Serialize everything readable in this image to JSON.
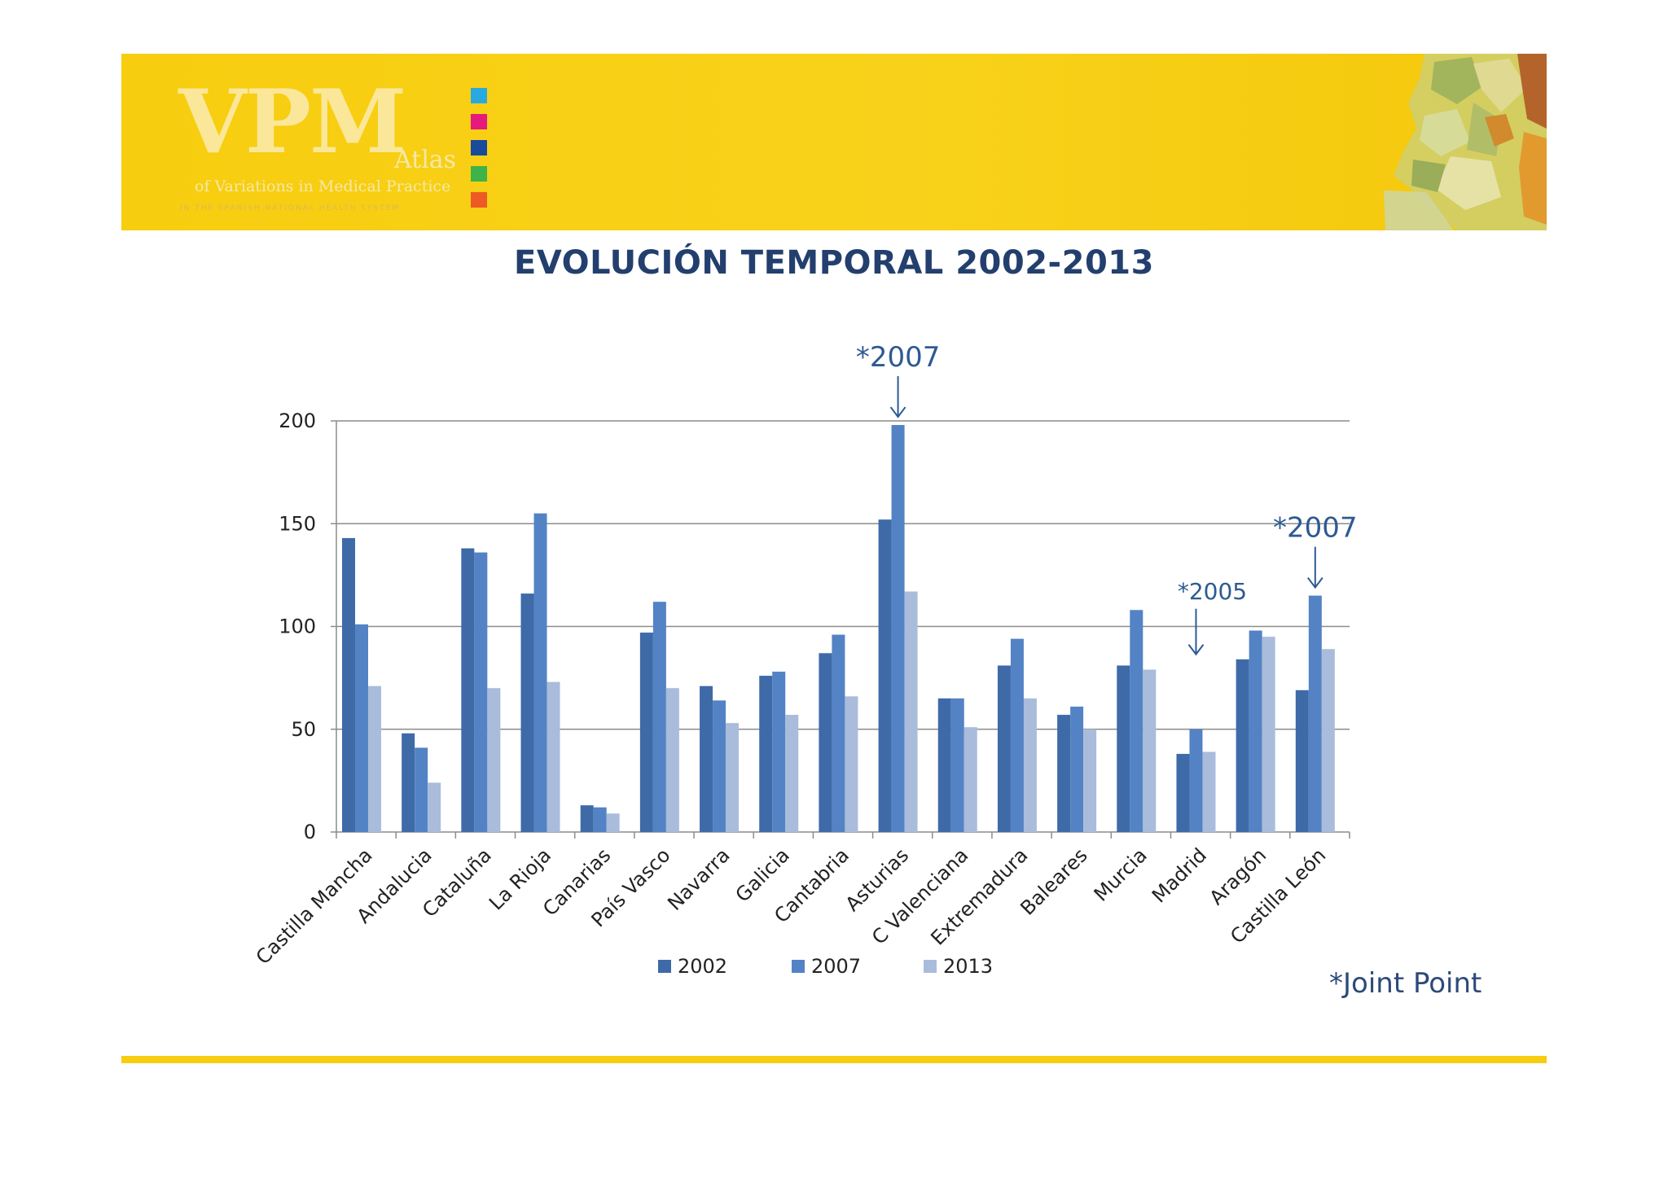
{
  "header": {
    "logo_main": "VPM",
    "logo_atlas": "Atlas",
    "logo_subtitle": "of Variations in Medical Practice",
    "logo_tagline": "IN THE SPANISH NATIONAL HEALTH SYSTEM",
    "swatch_colors": [
      "#29a9e0",
      "#e6197d",
      "#1a4a9c",
      "#3db34a",
      "#ee5a24"
    ]
  },
  "title": "EVOLUCIÓN TEMPORAL  2002-2013",
  "footnote": "*Joint Point",
  "chart_data": {
    "type": "bar",
    "title": "",
    "xlabel": "",
    "ylabel": "",
    "ylim": [
      0,
      200
    ],
    "yticks": [
      0,
      50,
      100,
      150,
      200
    ],
    "grid": true,
    "legend_position": "bottom",
    "categories": [
      "Castilla Mancha",
      "Andalucia",
      "Cataluña",
      "La Rioja",
      "Canarias",
      "País Vasco",
      "Navarra",
      "Galicia",
      "Cantabria",
      "Asturias",
      "C Valenciana",
      "Extremadura",
      "Baleares",
      "Murcia",
      "Madrid",
      "Aragón",
      "Castilla León"
    ],
    "series": [
      {
        "name": "2002",
        "color": "#3e6aa8",
        "values": [
          143,
          48,
          138,
          116,
          13,
          97,
          71,
          76,
          87,
          152,
          65,
          81,
          57,
          81,
          38,
          84,
          69
        ]
      },
      {
        "name": "2007",
        "color": "#5383c4",
        "values": [
          101,
          41,
          136,
          155,
          12,
          112,
          64,
          78,
          96,
          198,
          65,
          94,
          61,
          108,
          50,
          98,
          115
        ]
      },
      {
        "name": "2013",
        "color": "#a9bcdb",
        "values": [
          71,
          24,
          70,
          73,
          9,
          70,
          53,
          57,
          66,
          117,
          51,
          65,
          50,
          79,
          39,
          95,
          89
        ]
      }
    ],
    "annotations": [
      {
        "text": "*2007",
        "category": "Asturias",
        "series": "2007",
        "size": "large"
      },
      {
        "text": "*2007",
        "category": "Castilla León",
        "series": "2007",
        "size": "large"
      },
      {
        "text": "*2005",
        "category": "Madrid",
        "series": "2007",
        "size": "small"
      }
    ]
  }
}
